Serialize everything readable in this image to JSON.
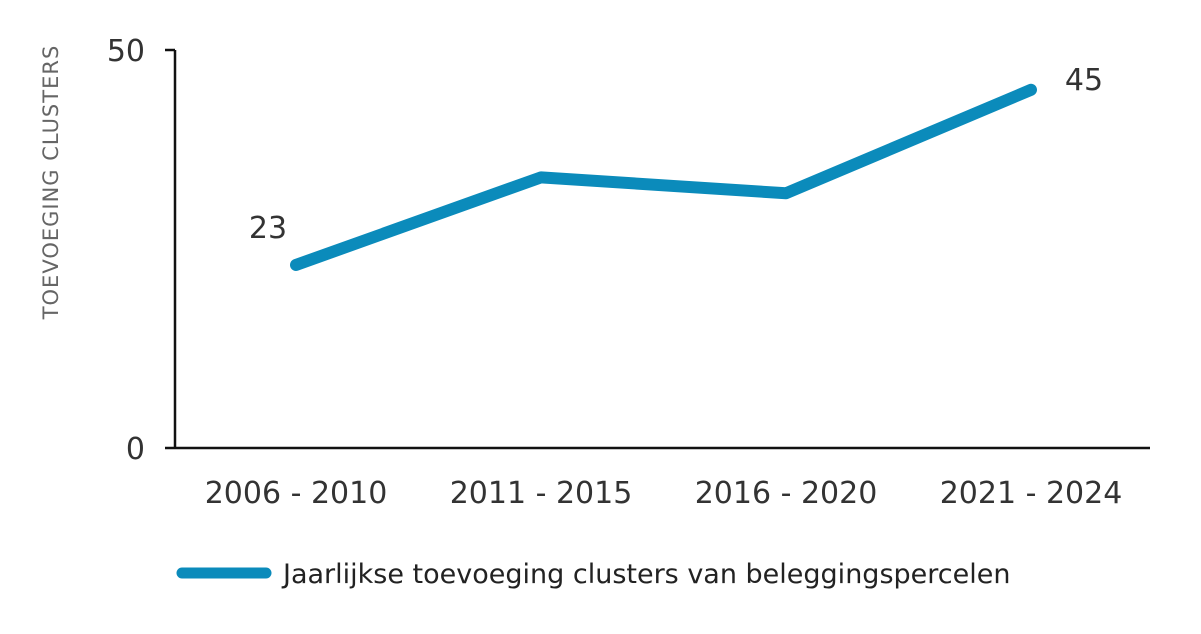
{
  "chart_data": {
    "type": "line",
    "title": "",
    "xlabel": "",
    "ylabel": "TOEVOEGING  CLUSTERS",
    "ylim": [
      0,
      50
    ],
    "yticks": [
      "0",
      "50"
    ],
    "categories": [
      "2006 - 2010",
      "2011 - 2015",
      "2016 - 2020",
      "2021 - 2024"
    ],
    "series": [
      {
        "name": "Jaarlijkse toevoeging clusters van beleggingspercelen",
        "values": [
          23,
          34,
          32,
          45
        ],
        "color": "#0b8bbb"
      }
    ],
    "data_labels": [
      "23",
      "45"
    ],
    "legend_position": "bottom-left",
    "grid": false
  }
}
